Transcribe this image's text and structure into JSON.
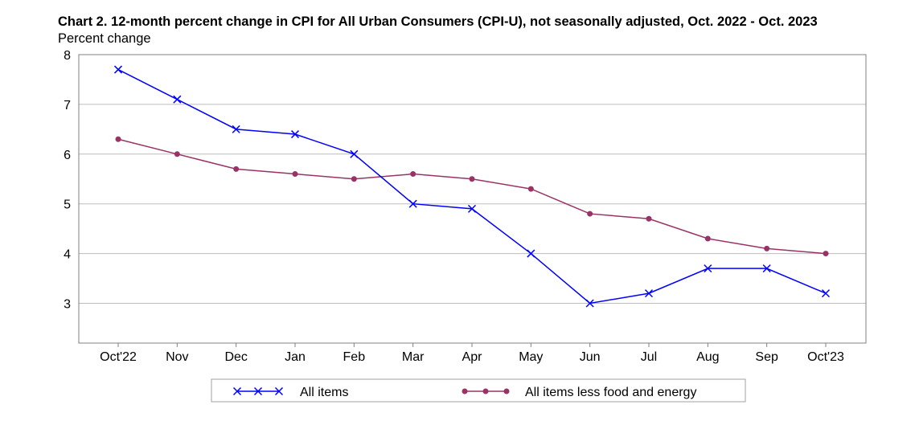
{
  "chart_data": {
    "type": "line",
    "title": "Chart 2. 12-month percent change in CPI for All Urban Consumers (CPI-U), not seasonally adjusted, Oct. 2022 - Oct. 2023",
    "ylabel": "Percent change",
    "xlabel": "",
    "categories": [
      "Oct'22",
      "Nov",
      "Dec",
      "Jan",
      "Feb",
      "Mar",
      "Apr",
      "May",
      "Jun",
      "Jul",
      "Aug",
      "Sep",
      "Oct'23"
    ],
    "yticks": [
      3,
      4,
      5,
      6,
      7,
      8
    ],
    "ylim": [
      2.2,
      8
    ],
    "grid": true,
    "legend_position": "bottom",
    "series": [
      {
        "name": "All items",
        "color": "#0000ff",
        "marker": "x",
        "values": [
          7.7,
          7.1,
          6.5,
          6.4,
          6.0,
          5.0,
          4.9,
          4.0,
          3.0,
          3.2,
          3.7,
          3.7,
          3.2
        ]
      },
      {
        "name": "All items less food and energy",
        "color": "#993366",
        "marker": "dot",
        "values": [
          6.3,
          6.0,
          5.7,
          5.6,
          5.5,
          5.6,
          5.5,
          5.3,
          4.8,
          4.7,
          4.3,
          4.1,
          4.0
        ]
      }
    ]
  }
}
